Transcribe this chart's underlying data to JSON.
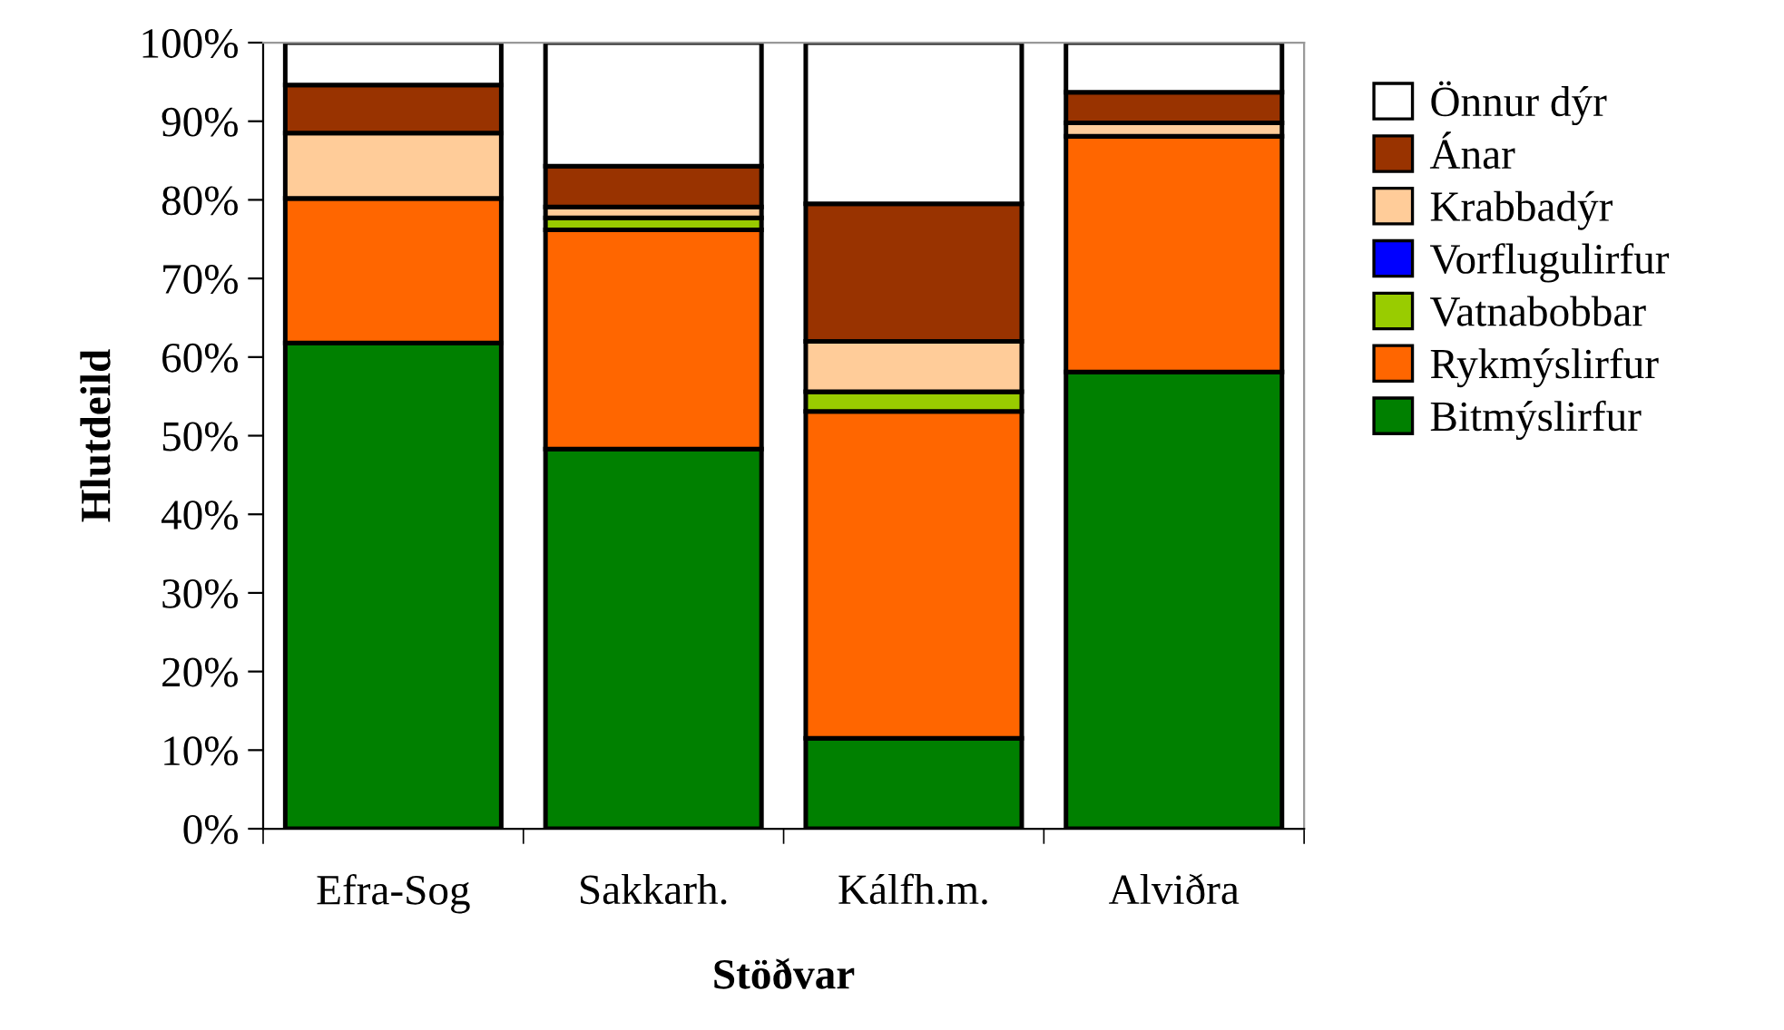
{
  "chart_data": {
    "type": "bar",
    "stacked": true,
    "xlabel": "Stöðvar",
    "ylabel": "Hlutdeild",
    "categories": [
      "Efra-Sog",
      "Sakkarh.",
      "Kálfh.m.",
      "Alviðra"
    ],
    "series": [
      {
        "name": "Bitmýslirfur",
        "color": "#008000",
        "values": [
          61.8,
          48.3,
          11.5,
          58.1
        ]
      },
      {
        "name": "Rykmýslirfur",
        "color": "#ff6600",
        "values": [
          18.4,
          27.9,
          41.6,
          30.0
        ]
      },
      {
        "name": "Vatnabobbar",
        "color": "#99cc00",
        "values": [
          null,
          1.5,
          2.5,
          0
        ]
      },
      {
        "name": "Vorflugulirfur",
        "color": "#0000ff",
        "values": [
          0,
          null,
          0,
          0
        ]
      },
      {
        "name": "Krabbadýr",
        "color": "#ffcc99",
        "values": [
          8.3,
          1.4,
          6.4,
          1.7
        ]
      },
      {
        "name": "Ánar",
        "color": "#993300",
        "values": [
          6.1,
          5.2,
          17.5,
          3.9
        ]
      },
      {
        "name": "Önnur dýr",
        "color": "#ffffff",
        "values": [
          5.4,
          15.7,
          20.5,
          6.3
        ]
      }
    ],
    "ylim": [
      0,
      100
    ],
    "yticks": [
      {
        "value": 0,
        "label": "0%"
      },
      {
        "value": 10,
        "label": "10%"
      },
      {
        "value": 20,
        "label": "20%"
      },
      {
        "value": 30,
        "label": "30%"
      },
      {
        "value": 40,
        "label": "40%"
      },
      {
        "value": 50,
        "label": "50%"
      },
      {
        "value": 60,
        "label": "60%"
      },
      {
        "value": 70,
        "label": "70%"
      },
      {
        "value": 80,
        "label": "80%"
      },
      {
        "value": 90,
        "label": "90%"
      },
      {
        "value": 100,
        "label": "100%"
      }
    ],
    "grid": false,
    "legend": "right"
  }
}
